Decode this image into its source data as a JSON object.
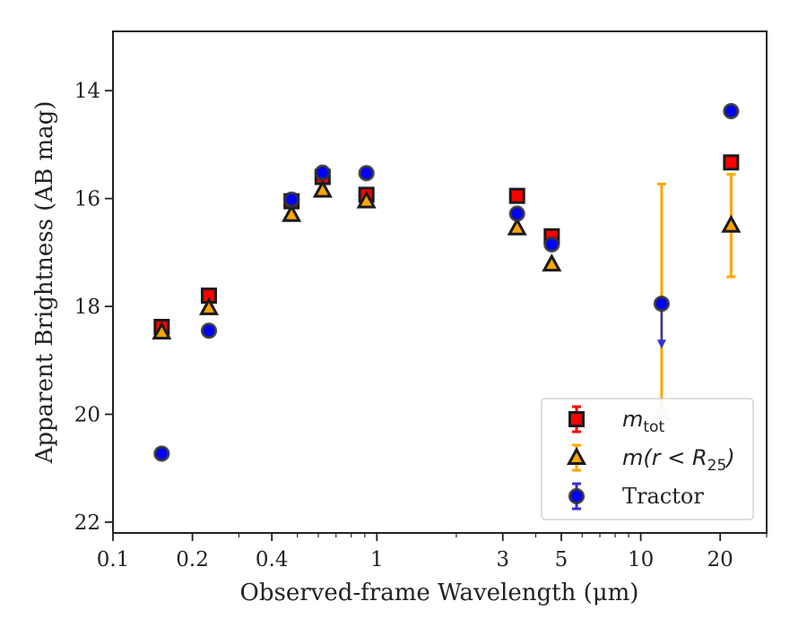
{
  "chart_data": {
    "type": "scatter",
    "xlabel": "Observed-frame Wavelength (μm)",
    "ylabel": "Apparent Brightness (AB mag)",
    "xscale": "log",
    "xlim": [
      0.1,
      30
    ],
    "ylim": [
      22.2,
      12.9
    ],
    "y_inverted": true,
    "xticks": [
      {
        "value": 0.1,
        "label": "0.1"
      },
      {
        "value": 0.2,
        "label": "0.2"
      },
      {
        "value": 0.4,
        "label": "0.4"
      },
      {
        "value": 1,
        "label": "1"
      },
      {
        "value": 3,
        "label": "3"
      },
      {
        "value": 5,
        "label": "5"
      },
      {
        "value": 10,
        "label": "10"
      },
      {
        "value": 20,
        "label": "20"
      }
    ],
    "yticks": [
      {
        "value": 14,
        "label": "14"
      },
      {
        "value": 16,
        "label": "16"
      },
      {
        "value": 18,
        "label": "18"
      },
      {
        "value": 20,
        "label": "20"
      },
      {
        "value": 22,
        "label": "22"
      }
    ],
    "grid": false,
    "legend_position": "lower-right",
    "series": [
      {
        "name": "m_tot",
        "label": {
          "base": "m",
          "sub": "tot"
        },
        "marker": "square",
        "color": "#ff0000",
        "edgecolor": "#1a1a1a",
        "points": [
          {
            "x": 0.153,
            "y": 18.38
          },
          {
            "x": 0.231,
            "y": 17.8
          },
          {
            "x": 0.475,
            "y": 16.05
          },
          {
            "x": 0.623,
            "y": 15.6
          },
          {
            "x": 0.913,
            "y": 15.93
          },
          {
            "x": 3.4,
            "y": 15.95
          },
          {
            "x": 4.6,
            "y": 16.7
          },
          {
            "x": 22.0,
            "y": 15.33
          }
        ]
      },
      {
        "name": "m(r < R25)",
        "label": {
          "base": "m(r < R",
          "sub": "25",
          "tail": ")"
        },
        "marker": "triangle",
        "color": "#ffa500",
        "edgecolor": "#1a1a1a",
        "points": [
          {
            "x": 0.153,
            "y": 18.48
          },
          {
            "x": 0.231,
            "y": 18.03
          },
          {
            "x": 0.475,
            "y": 16.3
          },
          {
            "x": 0.623,
            "y": 15.85
          },
          {
            "x": 0.913,
            "y": 16.05
          },
          {
            "x": 3.4,
            "y": 16.55
          },
          {
            "x": 4.6,
            "y": 17.22
          },
          {
            "x": 12.0,
            "y": 19.98,
            "yerr": [
              4.25,
              0
            ]
          },
          {
            "x": 22.0,
            "y": 16.5,
            "yerr": [
              0.95,
              0.95
            ]
          }
        ]
      },
      {
        "name": "Tractor",
        "label": {
          "base": "Tractor"
        },
        "marker": "circle",
        "color": "#0000ff",
        "edgecolor": "#333333",
        "points": [
          {
            "x": 0.153,
            "y": 20.73
          },
          {
            "x": 0.231,
            "y": 18.45
          },
          {
            "x": 0.475,
            "y": 16.02
          },
          {
            "x": 0.623,
            "y": 15.52
          },
          {
            "x": 0.913,
            "y": 15.53
          },
          {
            "x": 3.4,
            "y": 16.28
          },
          {
            "x": 4.6,
            "y": 16.85
          },
          {
            "x": 12.0,
            "y": 17.95,
            "upper_limit": true
          },
          {
            "x": 22.0,
            "y": 14.38
          }
        ]
      }
    ]
  }
}
